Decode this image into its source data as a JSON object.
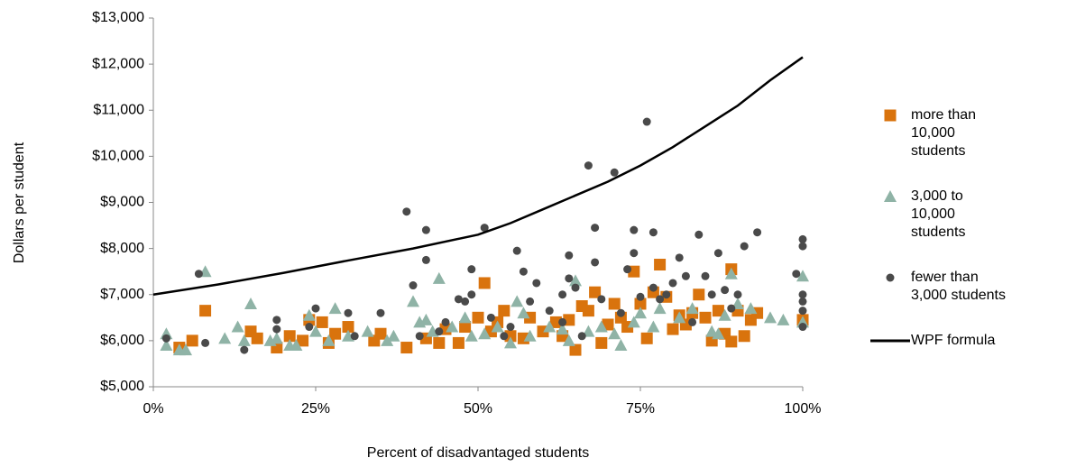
{
  "chart_data": {
    "type": "scatter",
    "xlabel": "Percent of disadvantaged students",
    "ylabel": "Dollars per student",
    "xlim": [
      0,
      100
    ],
    "xticks": [
      {
        "value": 0,
        "label": "0%"
      },
      {
        "value": 25,
        "label": "25%"
      },
      {
        "value": 50,
        "label": "50%"
      },
      {
        "value": 75,
        "label": "75%"
      },
      {
        "value": 100,
        "label": "100%"
      }
    ],
    "ylim": [
      5000,
      13000
    ],
    "yticks": [
      {
        "value": 5000,
        "label": "$5,000"
      },
      {
        "value": 6000,
        "label": "$6,000"
      },
      {
        "value": 7000,
        "label": "$7,000"
      },
      {
        "value": 8000,
        "label": "$8,000"
      },
      {
        "value": 9000,
        "label": "$9,000"
      },
      {
        "value": 10000,
        "label": "$10,000"
      },
      {
        "value": 11000,
        "label": "$11,000"
      },
      {
        "value": 12000,
        "label": "$12,000"
      },
      {
        "value": 13000,
        "label": "$13,000"
      }
    ],
    "series": [
      {
        "name": "more than 10,000 students",
        "color": "#d9730d",
        "marker": "square",
        "x": [
          4,
          8,
          6,
          15,
          16,
          19,
          21,
          23,
          24,
          26,
          27,
          28,
          30,
          34,
          35,
          39,
          42,
          44,
          45,
          47,
          48,
          50,
          51,
          52,
          53,
          54,
          55,
          57,
          58,
          60,
          62,
          63,
          64,
          65,
          66,
          67,
          68,
          69,
          70,
          71,
          72,
          73,
          74,
          75,
          76,
          77,
          78,
          79,
          80,
          81,
          82,
          83,
          84,
          85,
          86,
          87,
          88,
          89,
          89,
          90,
          91,
          92,
          93,
          100
        ],
        "y": [
          5850,
          6650,
          6000,
          6200,
          6050,
          5850,
          6100,
          6000,
          6450,
          6400,
          5950,
          6150,
          6300,
          6000,
          6150,
          5850,
          6050,
          5950,
          6250,
          5950,
          6300,
          6500,
          7250,
          6200,
          6400,
          6650,
          6100,
          6050,
          6500,
          6200,
          6400,
          6100,
          6450,
          5800,
          6750,
          6650,
          7050,
          5950,
          6350,
          6800,
          6500,
          6300,
          7500,
          6800,
          6050,
          7050,
          7650,
          6950,
          6250,
          6550,
          6350,
          6600,
          7000,
          6500,
          6000,
          6650,
          6150,
          7550,
          5980,
          6650,
          6100,
          6450,
          6600,
          6450
        ]
      },
      {
        "name": "3,000 to 10,000 students",
        "color": "#8fb3a6",
        "marker": "triangle",
        "x": [
          2,
          2,
          4,
          5,
          8,
          11,
          13,
          14,
          15,
          18,
          19,
          21,
          22,
          24,
          25,
          27,
          28,
          30,
          33,
          36,
          37,
          40,
          41,
          42,
          43,
          44,
          46,
          48,
          49,
          51,
          53,
          55,
          56,
          57,
          58,
          61,
          63,
          64,
          65,
          67,
          69,
          71,
          72,
          74,
          75,
          77,
          78,
          81,
          83,
          86,
          87,
          88,
          89,
          90,
          92,
          95,
          97,
          100,
          100
        ],
        "y": [
          5900,
          6150,
          5800,
          5800,
          7500,
          6050,
          6300,
          6000,
          6800,
          6000,
          6050,
          5900,
          5900,
          6550,
          6200,
          6000,
          6700,
          6100,
          6200,
          6000,
          6100,
          6850,
          6400,
          6450,
          6200,
          7350,
          6300,
          6500,
          6100,
          6150,
          6300,
          5950,
          6850,
          6600,
          6100,
          6300,
          6250,
          6000,
          7300,
          6200,
          6300,
          6150,
          5900,
          6400,
          6600,
          6300,
          6700,
          6500,
          6700,
          6200,
          6150,
          6550,
          7450,
          6800,
          6700,
          6500,
          6450,
          7400,
          6400
        ]
      },
      {
        "name": "fewer than 3,000 students",
        "color": "#4a4a4a",
        "marker": "circle",
        "x": [
          2,
          7,
          8,
          14,
          19,
          19,
          24,
          25,
          30,
          31,
          35,
          39,
          40,
          41,
          42,
          42,
          44,
          45,
          47,
          48,
          49,
          49,
          51,
          52,
          54,
          55,
          56,
          57,
          58,
          59,
          61,
          63,
          63,
          64,
          64,
          65,
          66,
          67,
          68,
          68,
          69,
          71,
          72,
          73,
          74,
          74,
          75,
          76,
          77,
          77,
          78,
          79,
          80,
          81,
          82,
          83,
          84,
          85,
          86,
          87,
          88,
          89,
          90,
          91,
          93,
          99,
          100,
          100,
          100,
          100,
          100,
          100
        ],
        "y": [
          6050,
          7450,
          5950,
          5800,
          6450,
          6250,
          6300,
          6700,
          6600,
          6100,
          6600,
          8800,
          7200,
          6100,
          8400,
          7750,
          6200,
          6400,
          6900,
          6850,
          7550,
          7000,
          8450,
          6500,
          6100,
          6300,
          7950,
          7500,
          6850,
          7250,
          6650,
          6400,
          7000,
          7850,
          7350,
          7150,
          6100,
          9800,
          7700,
          8450,
          6900,
          9650,
          6600,
          7550,
          8400,
          7900,
          6950,
          10750,
          7150,
          8350,
          6900,
          7000,
          7250,
          7800,
          7400,
          6400,
          8300,
          7400,
          7000,
          7900,
          7100,
          6700,
          7000,
          8050,
          8350,
          7450,
          8200,
          8050,
          7000,
          6650,
          6300,
          6850
        ]
      },
      {
        "name": "WPF formula",
        "color": "#000000",
        "marker": "line",
        "x": [
          0,
          10,
          20,
          30,
          40,
          50,
          55,
          60,
          65,
          70,
          75,
          80,
          85,
          90,
          95,
          100
        ],
        "y": [
          7000,
          7220,
          7470,
          7740,
          8000,
          8300,
          8550,
          8850,
          9150,
          9450,
          9800,
          10200,
          10650,
          11100,
          11650,
          12150
        ]
      }
    ]
  }
}
